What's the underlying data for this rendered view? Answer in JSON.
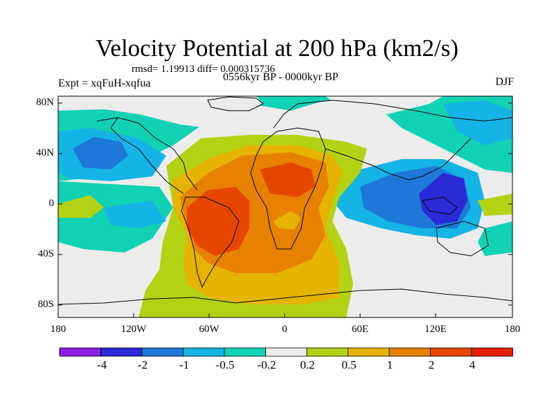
{
  "title": "Velocity Potential at 200 hPa (km2/s)",
  "stats": "rmsd= 1.19913 diff= 0.000315736",
  "experiment": "Expt = xqFuH-xqfua",
  "period": "0556kyr BP - 0000kyr BP",
  "season": "DJF",
  "map": {
    "lat_labels": [
      "80N",
      "40N",
      "0",
      "40S",
      "80S"
    ],
    "lon_labels": [
      "180",
      "120W",
      "60W",
      "0",
      "60E",
      "120E",
      "180"
    ]
  },
  "colorbar": {
    "labels": [
      "-4",
      "-2",
      "-1",
      "-0.5",
      "-0.2",
      "0.2",
      "0.5",
      "1",
      "2",
      "4"
    ],
    "colors": [
      "#8a1ee6",
      "#2a2ad6",
      "#1e78d8",
      "#14b4e6",
      "#12d2b4",
      "#ececec",
      "#b4d214",
      "#e6b400",
      "#e68200",
      "#e64600",
      "#e61e0a"
    ]
  }
}
